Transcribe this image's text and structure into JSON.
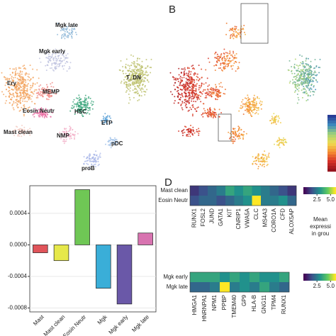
{
  "chart_data": [
    {
      "type": "embedding",
      "clusters": [
        "Mgk late",
        "Mgk early",
        "Ery",
        "MEMP",
        "HSC",
        "T_DN",
        "ETP",
        "pDC",
        "Eosin Neutr",
        "Mast clean",
        "NMP",
        "proB"
      ]
    },
    {
      "type": "embedding",
      "panel": "B"
    },
    {
      "type": "bar",
      "categories": [
        "Mast",
        "Mast clean",
        "Eosin Neutr",
        "Mgk",
        "Mgk early",
        "Mgk late"
      ],
      "values": [
        -0.0001,
        -0.0002,
        0.0007,
        -0.00055,
        -0.00075,
        0.00015
      ],
      "colors": [
        "#e0545a",
        "#e6e84a",
        "#6fc755",
        "#3aaed8",
        "#6a58a8",
        "#d873b0"
      ],
      "ylim": [
        -0.00085,
        0.00075
      ],
      "yticks": [
        {
          "value": 0.0004,
          "label": "0.0004"
        },
        {
          "value": 0,
          "label": "0.0000"
        },
        {
          "value": -0.0004,
          "label": "-0.0004"
        },
        {
          "value": -0.0008,
          "label": "-0.0008"
        }
      ],
      "grid": true
    },
    {
      "type": "heatmap",
      "panel": "D",
      "rows": [
        "Mast clean",
        "Eosin Neutr"
      ],
      "columns": [
        "RUNX1",
        "FOSL2",
        "JUND",
        "GATA1",
        "KIT",
        "CNRIP1",
        "VWA5A",
        "CLC",
        "MS4A3",
        "CORO1A",
        "CFD",
        "ALOX5AP"
      ],
      "values": [
        [
          1,
          1.5,
          2,
          2.5,
          3.5,
          3,
          3.5,
          3,
          2.5,
          2,
          1.5,
          1
        ],
        [
          1.5,
          2,
          2,
          1.5,
          2,
          2.5,
          3,
          6,
          2.5,
          2.5,
          3,
          2
        ]
      ],
      "clim": [
        0,
        6
      ],
      "cticks": [
        2.5,
        {
          "value": 5,
          "label": "5.0"
        }
      ],
      "legend_title": [
        "Mean",
        "expressi",
        "in grou"
      ]
    },
    {
      "type": "heatmap",
      "rows": [
        "Mgk early",
        "Mgk late"
      ],
      "columns": [
        "HMGA1",
        "HNRNPA1",
        "NPM1",
        "PPBP",
        "TMEM40",
        "GP9",
        "HLA-B",
        "GNG11",
        "TPM4",
        "RUNX1"
      ],
      "values": [
        [
          3.5,
          3.5,
          3.5,
          3,
          3.5,
          3,
          3.5,
          3,
          3,
          3.5
        ],
        [
          2,
          2,
          2.5,
          6,
          2.5,
          3,
          2.5,
          3.5,
          2.5,
          2
        ]
      ],
      "clim": [
        0,
        6
      ],
      "cticks": [
        2.5,
        {
          "value": 5,
          "label": "5.0"
        }
      ]
    }
  ]
}
